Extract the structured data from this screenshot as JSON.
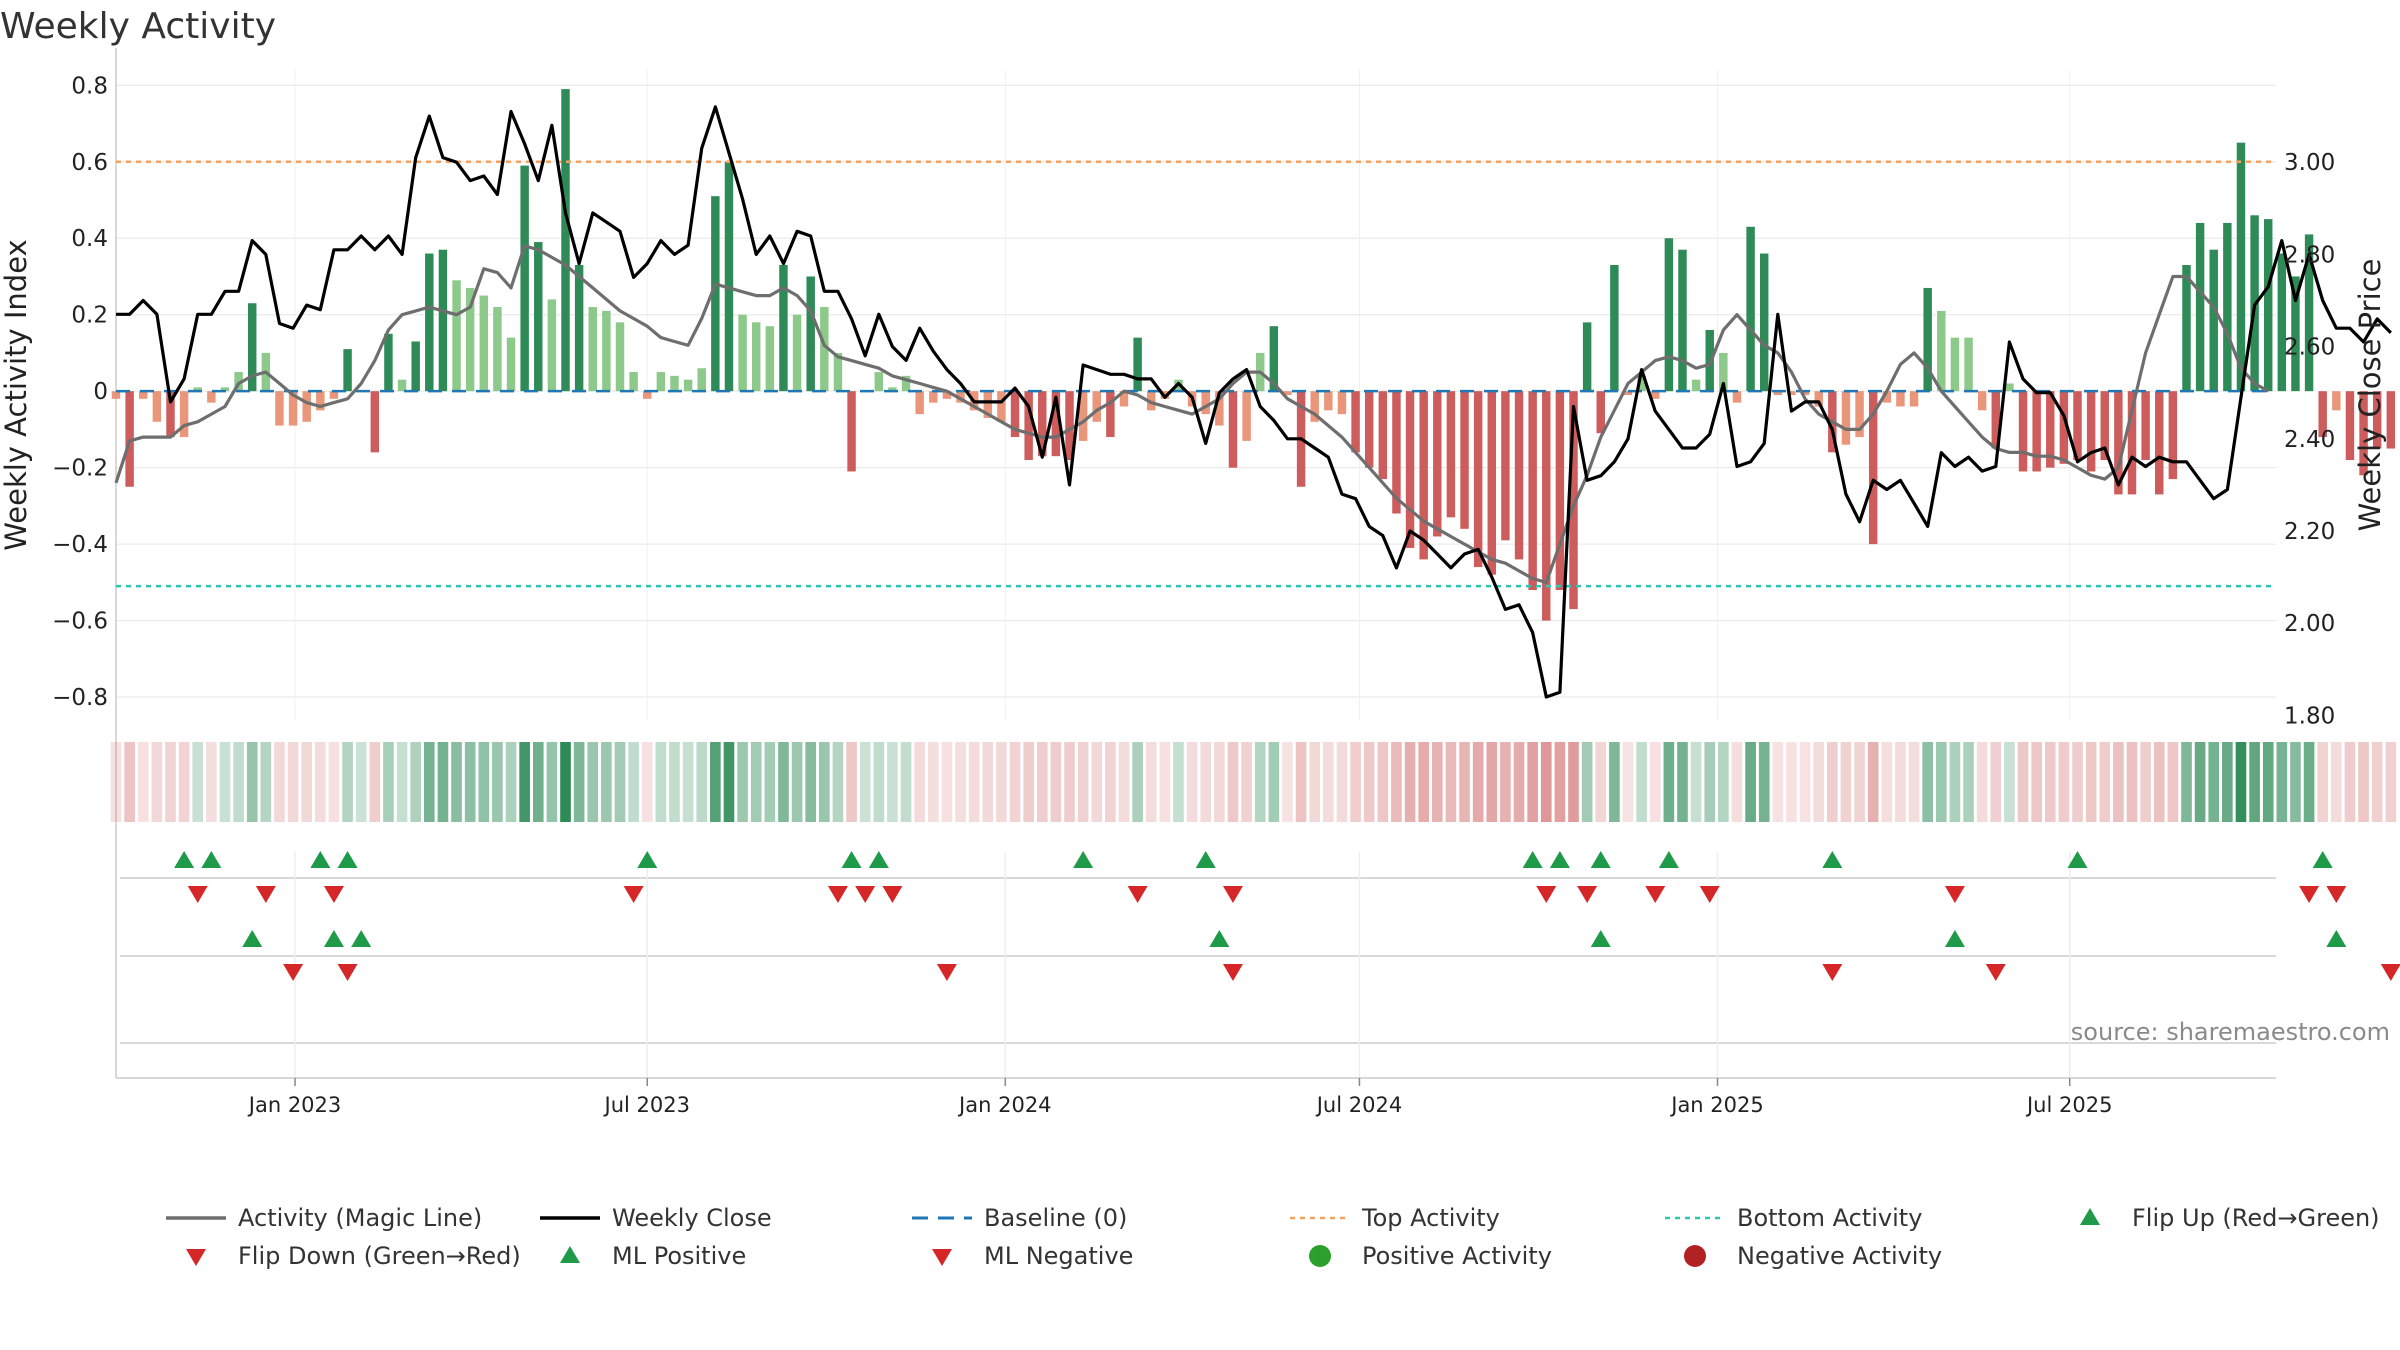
{
  "chart_data": {
    "type": "bar",
    "title": "Weekly Activity",
    "ylabel": "Weekly Activity Index",
    "y2label": "Weekly Close Price",
    "ylim": [
      -0.86,
      0.84
    ],
    "y2lim": [
      1.79,
      3.2
    ],
    "yticks": [
      "0.8",
      "0.6",
      "0.4",
      "0.2",
      "0",
      "−0.2",
      "−0.4",
      "−0.6",
      "−0.8"
    ],
    "yticks_values": [
      0.8,
      0.6,
      0.4,
      0.2,
      0,
      -0.2,
      -0.4,
      -0.6,
      -0.8
    ],
    "y2ticks": [
      "3.00",
      "2.80",
      "2.60",
      "2.40",
      "2.20",
      "2.00",
      "1.80"
    ],
    "y2ticks_values": [
      3.0,
      2.8,
      2.6,
      2.4,
      2.2,
      2.0,
      1.8
    ],
    "x_start": "2022-10-01",
    "x_end": "2025-10-15",
    "xticks": [
      {
        "date": "2023-01-01",
        "label": "Jan 2023"
      },
      {
        "date": "2023-07-01",
        "label": "Jul 2023"
      },
      {
        "date": "2024-01-01",
        "label": "Jan 2024"
      },
      {
        "date": "2024-07-01",
        "label": "Jul 2024"
      },
      {
        "date": "2025-01-01",
        "label": "Jan 2025"
      },
      {
        "date": "2025-07-01",
        "label": "Jul 2025"
      }
    ],
    "first_week": "2022-10-01",
    "top_activity": 0.6,
    "bottom_activity": -0.51,
    "activity_bars": [
      -0.02,
      -0.25,
      -0.02,
      -0.08,
      -0.12,
      -0.12,
      0.01,
      -0.03,
      0.01,
      0.05,
      0.23,
      0.1,
      -0.09,
      -0.09,
      -0.08,
      -0.05,
      -0.02,
      0.11,
      0.0,
      -0.16,
      0.15,
      0.03,
      0.13,
      0.36,
      0.37,
      0.29,
      0.27,
      0.25,
      0.22,
      0.14,
      0.59,
      0.39,
      0.24,
      0.79,
      0.33,
      0.22,
      0.21,
      0.18,
      0.05,
      -0.02,
      0.05,
      0.04,
      0.03,
      0.06,
      0.51,
      0.6,
      0.2,
      0.18,
      0.17,
      0.33,
      0.2,
      0.3,
      0.22,
      0.1,
      -0.21,
      0.0,
      0.05,
      0.01,
      0.04,
      -0.06,
      -0.03,
      -0.02,
      -0.03,
      -0.05,
      -0.07,
      -0.08,
      -0.12,
      -0.18,
      -0.17,
      -0.17,
      -0.18,
      -0.13,
      -0.08,
      -0.12,
      -0.04,
      0.14,
      -0.05,
      -0.02,
      0.03,
      -0.04,
      -0.06,
      -0.09,
      -0.2,
      -0.13,
      0.1,
      0.17,
      -0.01,
      -0.25,
      -0.08,
      -0.05,
      -0.06,
      -0.16,
      -0.2,
      -0.23,
      -0.32,
      -0.41,
      -0.44,
      -0.38,
      -0.33,
      -0.36,
      -0.46,
      -0.48,
      -0.39,
      -0.44,
      -0.52,
      -0.6,
      -0.52,
      -0.57,
      0.18,
      -0.11,
      0.33,
      -0.01,
      0.04,
      -0.02,
      0.4,
      0.37,
      0.03,
      0.16,
      0.1,
      -0.03,
      0.43,
      0.36,
      -0.01,
      -0.01,
      -0.01,
      -0.04,
      -0.16,
      -0.14,
      -0.12,
      -0.4,
      -0.03,
      -0.04,
      -0.04,
      0.27,
      0.21,
      0.14,
      0.14,
      -0.05,
      -0.15,
      0.02,
      -0.21,
      -0.21,
      -0.2,
      -0.19,
      -0.18,
      -0.21,
      -0.18,
      -0.27,
      -0.27,
      -0.18,
      -0.27,
      -0.23,
      0.33,
      0.44,
      0.37,
      0.44,
      0.65,
      0.46,
      0.45,
      0.36,
      0.3,
      0.41,
      -0.12,
      -0.05,
      -0.18,
      -0.22,
      -0.15,
      -0.15
    ],
    "magic_line_values": [
      -0.24,
      -0.13,
      -0.12,
      -0.12,
      -0.12,
      -0.09,
      -0.08,
      -0.06,
      -0.04,
      0.02,
      0.04,
      0.05,
      0.02,
      -0.01,
      -0.03,
      -0.04,
      -0.03,
      -0.02,
      0.02,
      0.08,
      0.16,
      0.2,
      0.21,
      0.22,
      0.21,
      0.2,
      0.22,
      0.32,
      0.31,
      0.27,
      0.38,
      0.37,
      0.35,
      0.33,
      0.3,
      0.27,
      0.24,
      0.21,
      0.19,
      0.17,
      0.14,
      0.13,
      0.12,
      0.19,
      0.28,
      0.27,
      0.26,
      0.25,
      0.25,
      0.27,
      0.25,
      0.21,
      0.12,
      0.09,
      0.08,
      0.07,
      0.06,
      0.04,
      0.03,
      0.02,
      0.01,
      0.0,
      -0.02,
      -0.04,
      -0.06,
      -0.08,
      -0.1,
      -0.11,
      -0.12,
      -0.12,
      -0.1,
      -0.08,
      -0.05,
      -0.03,
      0.0,
      -0.01,
      -0.03,
      -0.04,
      -0.05,
      -0.06,
      -0.04,
      -0.02,
      0.02,
      0.05,
      0.05,
      0.02,
      -0.02,
      -0.04,
      -0.06,
      -0.09,
      -0.12,
      -0.16,
      -0.2,
      -0.24,
      -0.28,
      -0.31,
      -0.34,
      -0.36,
      -0.38,
      -0.4,
      -0.42,
      -0.44,
      -0.45,
      -0.47,
      -0.49,
      -0.5,
      -0.4,
      -0.3,
      -0.22,
      -0.12,
      -0.05,
      0.02,
      0.05,
      0.08,
      0.09,
      0.08,
      0.06,
      0.07,
      0.16,
      0.2,
      0.16,
      0.12,
      0.1,
      0.05,
      -0.02,
      -0.06,
      -0.08,
      -0.1,
      -0.1,
      -0.06,
      0.0,
      0.07,
      0.1,
      0.06,
      0.0,
      -0.04,
      -0.08,
      -0.12,
      -0.15,
      -0.16,
      -0.16,
      -0.17,
      -0.17,
      -0.18,
      -0.2,
      -0.22,
      -0.23,
      -0.2,
      -0.05,
      0.1,
      0.2,
      0.3,
      0.3,
      0.26,
      0.22,
      0.15,
      0.06,
      0.02,
      0.0
    ],
    "weekly_close_values": [
      2.67,
      2.67,
      2.7,
      2.67,
      2.48,
      2.53,
      2.67,
      2.67,
      2.72,
      2.72,
      2.83,
      2.8,
      2.65,
      2.64,
      2.69,
      2.68,
      2.81,
      2.81,
      2.84,
      2.81,
      2.84,
      2.8,
      3.01,
      3.1,
      3.01,
      3.0,
      2.96,
      2.97,
      2.93,
      3.11,
      3.04,
      2.96,
      3.08,
      2.89,
      2.78,
      2.89,
      2.87,
      2.85,
      2.75,
      2.78,
      2.83,
      2.8,
      2.82,
      3.03,
      3.12,
      3.02,
      2.92,
      2.8,
      2.84,
      2.78,
      2.85,
      2.84,
      2.72,
      2.72,
      2.66,
      2.58,
      2.67,
      2.6,
      2.57,
      2.64,
      2.59,
      2.55,
      2.52,
      2.48,
      2.48,
      2.48,
      2.51,
      2.47,
      2.36,
      2.49,
      2.3,
      2.56,
      2.55,
      2.54,
      2.54,
      2.53,
      2.53,
      2.49,
      2.52,
      2.49,
      2.39,
      2.5,
      2.53,
      2.55,
      2.47,
      2.44,
      2.4,
      2.4,
      2.38,
      2.36,
      2.28,
      2.27,
      2.21,
      2.19,
      2.12,
      2.2,
      2.18,
      2.15,
      2.12,
      2.15,
      2.16,
      2.1,
      2.03,
      2.04,
      1.98,
      1.84,
      1.85,
      2.47,
      2.31,
      2.32,
      2.35,
      2.4,
      2.55,
      2.46,
      2.42,
      2.38,
      2.38,
      2.41,
      2.52,
      2.34,
      2.35,
      2.39,
      2.67,
      2.46,
      2.48,
      2.48,
      2.42,
      2.28,
      2.22,
      2.31,
      2.29,
      2.31,
      2.26,
      2.21,
      2.37,
      2.34,
      2.36,
      2.33,
      2.34,
      2.61,
      2.53,
      2.5,
      2.5,
      2.45,
      2.35,
      2.37,
      2.38,
      2.3,
      2.36,
      2.34,
      2.36,
      2.35,
      2.35,
      2.31,
      2.27,
      2.29,
      2.49,
      2.69,
      2.73,
      2.83,
      2.7,
      2.8,
      2.7,
      2.64,
      2.64,
      2.61,
      2.66,
      2.63
    ],
    "flip_up_weeks": [
      5,
      7,
      15,
      17,
      39,
      54,
      56,
      71,
      80,
      104,
      106,
      109,
      114,
      126,
      144,
      162
    ],
    "flip_down_weeks": [
      6,
      11,
      16,
      38,
      53,
      55,
      57,
      75,
      82,
      105,
      108,
      113,
      117,
      135,
      161,
      163
    ],
    "ml_positive_weeks": [
      10,
      16,
      18,
      81,
      109,
      135,
      163
    ],
    "ml_negative_weeks": [
      13,
      17,
      61,
      82,
      126,
      138,
      167
    ],
    "series": [
      {
        "name": "Activity (Magic Line)",
        "color": "#6e6e6e"
      },
      {
        "name": "Weekly Close",
        "color": "#000000"
      },
      {
        "name": "Baseline (0)",
        "color": "#1f77b4"
      },
      {
        "name": "Top Activity",
        "color": "#f4a261"
      },
      {
        "name": "Bottom Activity",
        "color": "#2ec4b6"
      },
      {
        "name": "Flip Up (Red→Green)",
        "color": "#1e9a49"
      },
      {
        "name": "Flip Down (Green→Red)",
        "color": "#d62728"
      },
      {
        "name": "ML Positive",
        "color": "#1e9a49"
      },
      {
        "name": "ML Negative",
        "color": "#d62728"
      },
      {
        "name": "Positive Activity",
        "color": "#2ca02c"
      },
      {
        "name": "Negative Activity",
        "color": "#b22222"
      }
    ],
    "legend": [
      [
        "Activity (Magic Line)",
        "Weekly Close",
        "Baseline (0)",
        "Top Activity",
        "Bottom Activity",
        "Flip Up (Red→Green)"
      ],
      [
        "Flip Down (Green→Red)",
        "ML Positive",
        "ML Negative",
        "Positive Activity",
        "Negative Activity"
      ]
    ],
    "legend_position": "bottom"
  },
  "source_text": "source: sharemaestro.com",
  "colors": {
    "pos_strong": "#2e8b57",
    "pos_light": "#8cc98a",
    "neg_strong": "#cd5c5c",
    "neg_light": "#e9967a",
    "grid": "#e6e6e6",
    "axis": "#cccccc"
  }
}
